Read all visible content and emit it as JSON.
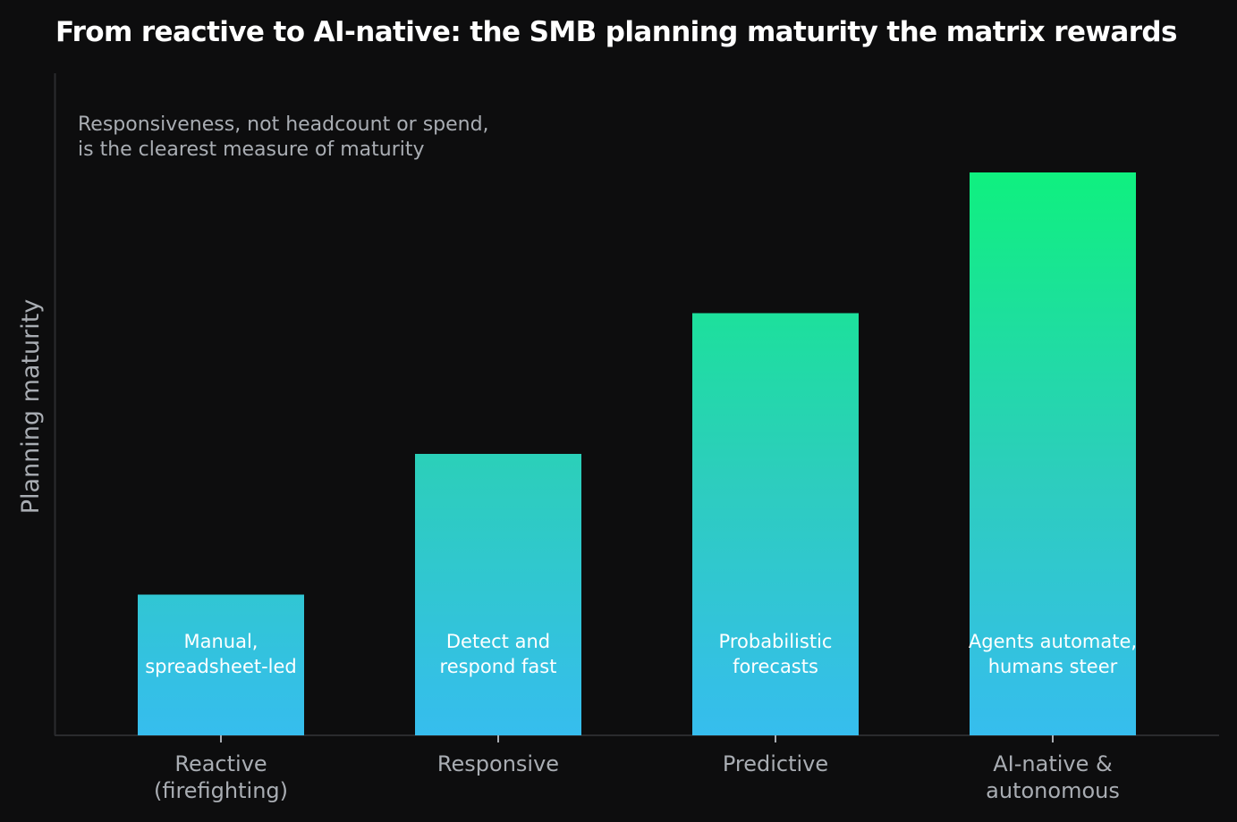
{
  "chart_data": {
    "type": "bar",
    "title": "From reactive to AI-native: the SMB planning maturity the matrix rewards",
    "annotation": [
      "Responsiveness, not headcount or spend,",
      "is the clearest measure of maturity"
    ],
    "ylabel": "Planning maturity",
    "xlabel": "",
    "categories": [
      [
        "Reactive",
        "(firefighting)"
      ],
      [
        "Responsive"
      ],
      [
        "Predictive"
      ],
      [
        "AI-native &",
        "autonomous"
      ]
    ],
    "values": [
      1,
      2,
      3,
      4
    ],
    "bar_labels": [
      [
        "Manual,",
        "spreadsheet-led"
      ],
      [
        "Detect and",
        "respond fast"
      ],
      [
        "Probabilistic",
        "forecasts"
      ],
      [
        "Agents automate,",
        "humans steer"
      ]
    ],
    "ylim": [
      0,
      4.7
    ],
    "grid": false,
    "legend": "none",
    "colors": {
      "background": "#0d0d0e",
      "gradient_top": "#0ff07f",
      "gradient_mid": "#2dcdbe",
      "gradient_bottom": "#36bdee",
      "axis": "#2a2b2e",
      "text_muted": "#a9adb3",
      "title": "#ffffff"
    }
  }
}
